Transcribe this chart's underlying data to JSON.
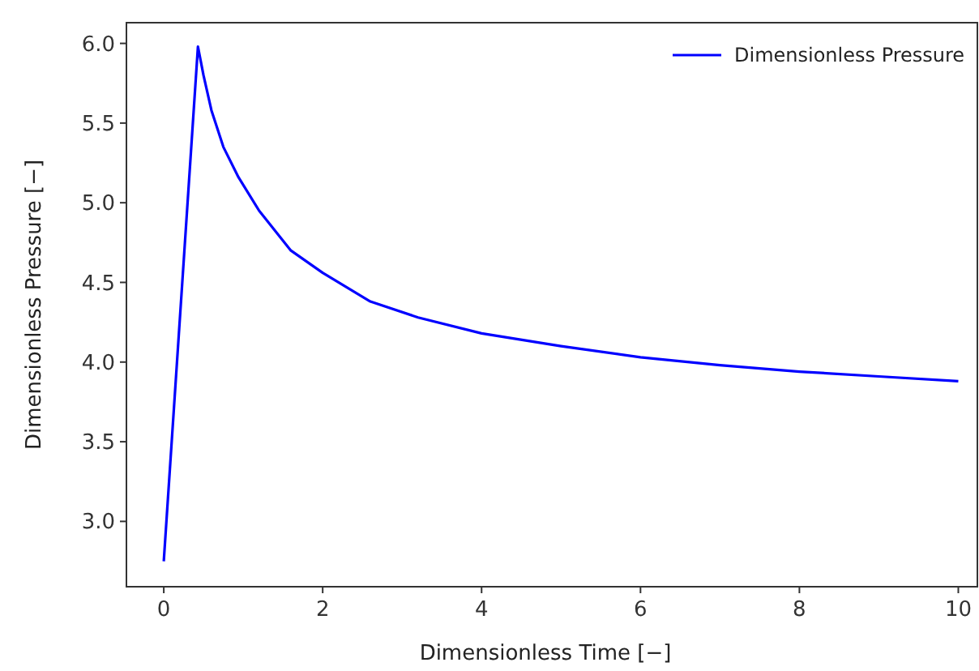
{
  "chart_data": {
    "type": "line",
    "xlabel": "Dimensionless Time [−]",
    "ylabel": "Dimensionless Pressure [−]",
    "x": [
      0,
      0.43,
      0.5,
      0.6,
      0.75,
      0.94,
      1.2,
      1.6,
      2,
      2.6,
      3.2,
      4,
      5,
      6,
      7,
      8,
      9,
      10
    ],
    "series": [
      {
        "name": "Dimensionless Pressure",
        "color": "#0000ff",
        "values": [
          2.75,
          5.98,
          5.8,
          5.58,
          5.35,
          5.16,
          4.95,
          4.7,
          4.56,
          4.38,
          4.28,
          4.18,
          4.1,
          4.03,
          3.98,
          3.94,
          3.91,
          3.88
        ]
      }
    ],
    "xlim": [
      -0.47,
      10.24
    ],
    "ylim": [
      2.59,
      6.13
    ],
    "xticks": [
      0,
      2,
      4,
      6,
      8,
      10
    ],
    "yticks": [
      {
        "value": 3,
        "label": "3.0"
      },
      3.5,
      {
        "value": 4,
        "label": "4.0"
      },
      4.5,
      {
        "value": 5,
        "label": "5.0"
      },
      5.5,
      {
        "value": 6,
        "label": "6.0"
      }
    ],
    "legend": "top right",
    "grid": false
  }
}
